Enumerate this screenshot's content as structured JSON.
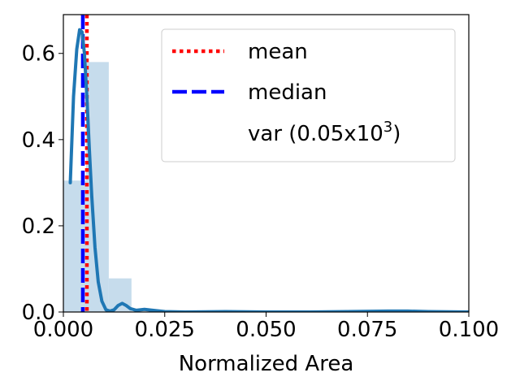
{
  "chart_data": {
    "type": "bar",
    "xlabel": "Normalized Area",
    "ylabel": "",
    "xlim": [
      0.0,
      0.1
    ],
    "ylim": [
      0.0,
      0.69
    ],
    "x_ticks": [
      "0.000",
      "0.025",
      "0.050",
      "0.075",
      "0.100"
    ],
    "x_tick_values": [
      0.0,
      0.025,
      0.05,
      0.075,
      0.1
    ],
    "y_ticks": [
      "0.0",
      "0.2",
      "0.4",
      "0.6"
    ],
    "y_tick_values": [
      0.0,
      0.2,
      0.4,
      0.6
    ],
    "grid": false,
    "legend_position": "upper-right",
    "histogram": {
      "color": "#c6dcec",
      "bins": [
        {
          "x0": 0.0,
          "x1": 0.0056,
          "value": 0.305
        },
        {
          "x0": 0.0056,
          "x1": 0.0112,
          "value": 0.58
        },
        {
          "x0": 0.0112,
          "x1": 0.0168,
          "value": 0.078
        }
      ]
    },
    "kde": {
      "color": "#1f77b4",
      "x": [
        0.0017,
        0.0025,
        0.0033,
        0.004,
        0.0046,
        0.0052,
        0.0058,
        0.0064,
        0.007,
        0.0078,
        0.0086,
        0.0095,
        0.0105,
        0.0115,
        0.0125,
        0.0135,
        0.0145,
        0.0155,
        0.0165,
        0.018,
        0.02,
        0.022,
        0.025,
        0.03,
        0.04,
        0.05,
        0.06,
        0.07,
        0.08,
        0.085,
        0.09,
        0.1
      ],
      "y": [
        0.3,
        0.5,
        0.61,
        0.655,
        0.65,
        0.6,
        0.5,
        0.38,
        0.27,
        0.15,
        0.07,
        0.025,
        0.005,
        0.002,
        0.005,
        0.015,
        0.02,
        0.015,
        0.008,
        0.004,
        0.006,
        0.004,
        0.001,
        0.0,
        0.001,
        0.0,
        0.0,
        0.001,
        0.002,
        0.002,
        0.001,
        0.0
      ]
    },
    "mean": {
      "value": 0.0058,
      "label": "mean",
      "color": "#ff0000"
    },
    "median": {
      "value": 0.0048,
      "label": "median",
      "color": "#0000ff"
    },
    "legend": [
      {
        "label": "mean",
        "style": "dotted",
        "color": "#ff0000"
      },
      {
        "label": "median",
        "style": "dashed",
        "color": "#0000ff"
      },
      {
        "label_prefix": "var (0.05x10",
        "label_sup": "3",
        "label_suffix": ")",
        "style": "none"
      }
    ]
  }
}
